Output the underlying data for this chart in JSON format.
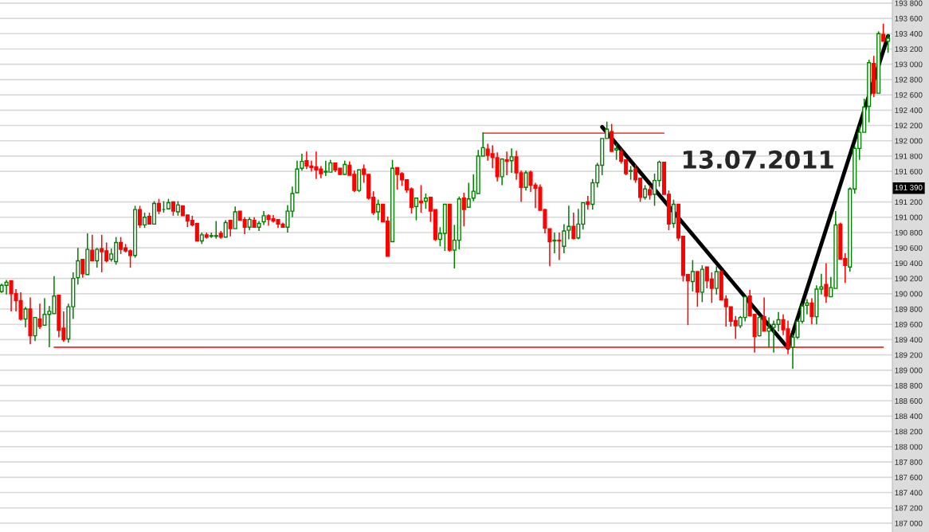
{
  "chart_data": {
    "type": "candlestick",
    "categories": [
      null,
      null,
      null,
      null,
      null,
      null,
      null,
      null,
      null,
      null,
      null,
      null,
      null,
      null,
      null,
      null,
      null,
      null,
      null,
      null,
      null,
      null,
      null,
      null,
      null,
      null,
      null,
      null,
      null,
      null,
      null,
      null,
      null,
      null,
      null,
      null,
      null,
      null,
      null,
      null,
      null,
      null,
      null,
      null,
      null,
      null,
      null,
      null,
      null,
      null,
      null,
      null,
      null,
      null,
      null,
      null,
      null,
      null,
      null,
      null,
      null,
      null,
      null,
      null,
      null,
      null,
      null,
      null,
      null,
      null,
      null,
      null,
      null,
      null,
      null,
      null,
      null,
      null,
      null,
      null,
      null,
      null,
      null,
      null,
      null,
      null,
      null,
      null,
      null,
      null,
      null,
      null,
      null,
      null,
      null,
      null,
      null,
      null,
      null,
      null,
      null,
      null,
      null,
      null,
      null,
      null,
      null,
      null,
      null,
      null,
      null,
      null,
      null,
      null,
      null,
      null,
      null,
      null,
      null,
      null,
      null,
      null,
      null,
      null,
      null,
      null,
      null,
      null,
      null,
      null,
      null,
      null,
      null,
      null,
      null,
      null,
      null,
      null,
      null,
      null,
      null,
      null,
      null,
      null,
      null,
      null,
      null,
      null,
      null,
      null,
      null,
      null,
      null,
      null,
      null,
      null,
      null,
      null,
      null,
      null,
      null,
      null,
      null,
      null,
      null,
      null,
      null,
      null,
      null,
      null,
      null,
      null,
      null,
      null,
      null,
      null,
      null,
      null,
      null,
      null,
      null,
      null,
      null,
      null,
      null,
      null,
      null
    ],
    "ohlc": [
      [
        190030,
        190130,
        190010,
        190110
      ],
      [
        190110,
        190180,
        189990,
        190150
      ],
      [
        190170,
        190170,
        189770,
        190000
      ],
      [
        190000,
        190060,
        189770,
        189910
      ],
      [
        189910,
        190020,
        189650,
        189670
      ],
      [
        189670,
        189830,
        189560,
        189800
      ],
      [
        189800,
        189950,
        189340,
        189450
      ],
      [
        189450,
        189690,
        189380,
        189690
      ],
      [
        189670,
        189870,
        189540,
        189570
      ],
      [
        189590,
        189940,
        189590,
        189730
      ],
      [
        189730,
        189840,
        189300,
        189770
      ],
      [
        189740,
        190230,
        189740,
        189970
      ],
      [
        189980,
        189980,
        189430,
        189520
      ],
      [
        189550,
        189770,
        189370,
        189400
      ],
      [
        189410,
        189870,
        189360,
        189830
      ],
      [
        189830,
        190280,
        189670,
        190200
      ],
      [
        190210,
        190600,
        190120,
        190430
      ],
      [
        190450,
        190450,
        190210,
        190260
      ],
      [
        190250,
        190790,
        190250,
        190580
      ],
      [
        190570,
        190770,
        190430,
        190430
      ],
      [
        190430,
        190600,
        190340,
        190580
      ],
      [
        190590,
        190770,
        190280,
        190550
      ],
      [
        190560,
        190670,
        190410,
        190430
      ],
      [
        190450,
        190590,
        190420,
        190520
      ],
      [
        190420,
        190740,
        190380,
        190670
      ],
      [
        190670,
        190740,
        190520,
        190580
      ],
      [
        190600,
        190650,
        190540,
        190560
      ],
      [
        190560,
        190580,
        190340,
        190500
      ],
      [
        190500,
        191150,
        190470,
        191100
      ],
      [
        191100,
        191150,
        190860,
        190900
      ],
      [
        190900,
        191060,
        190860,
        191000
      ],
      [
        191010,
        191060,
        190910,
        190910
      ],
      [
        190910,
        191210,
        190910,
        191180
      ],
      [
        191180,
        191240,
        191040,
        191080
      ],
      [
        191100,
        191210,
        191060,
        191100
      ],
      [
        191110,
        191240,
        191110,
        191190
      ],
      [
        191200,
        191200,
        191020,
        191080
      ],
      [
        191070,
        191210,
        191020,
        191160
      ],
      [
        191150,
        191150,
        191020,
        191020
      ],
      [
        191030,
        191030,
        190870,
        190950
      ],
      [
        190960,
        191020,
        190880,
        190900
      ],
      [
        190920,
        190920,
        190690,
        190690
      ],
      [
        190690,
        190800,
        190650,
        190770
      ],
      [
        190770,
        190800,
        190720,
        190740
      ],
      [
        190750,
        190800,
        190730,
        190760
      ],
      [
        190750,
        190950,
        190720,
        190760
      ],
      [
        190790,
        190820,
        190720,
        190740
      ],
      [
        190740,
        190960,
        190740,
        190930
      ],
      [
        190960,
        190960,
        190750,
        190850
      ],
      [
        190850,
        191140,
        190850,
        191070
      ],
      [
        191080,
        191080,
        190960,
        190960
      ],
      [
        190970,
        191000,
        190780,
        190870
      ],
      [
        190870,
        191000,
        190830,
        190970
      ],
      [
        190960,
        191000,
        190870,
        190870
      ],
      [
        190870,
        190950,
        190820,
        190920
      ],
      [
        190940,
        191080,
        190900,
        191020
      ],
      [
        191020,
        191040,
        190890,
        190970
      ],
      [
        190980,
        191030,
        190930,
        190950
      ],
      [
        190970,
        190970,
        190860,
        190910
      ],
      [
        190910,
        190930,
        190870,
        190870
      ],
      [
        190870,
        191160,
        190800,
        191080
      ],
      [
        191080,
        191400,
        191000,
        191310
      ],
      [
        191320,
        191740,
        191320,
        191630
      ],
      [
        191640,
        191830,
        191610,
        191730
      ],
      [
        191740,
        191860,
        191630,
        191670
      ],
      [
        191670,
        191740,
        191600,
        191650
      ],
      [
        191660,
        191860,
        191500,
        191620
      ],
      [
        191630,
        191670,
        191510,
        191570
      ],
      [
        191590,
        191740,
        191540,
        191600
      ],
      [
        191590,
        191750,
        191590,
        191710
      ],
      [
        191710,
        191710,
        191590,
        191620
      ],
      [
        191640,
        191640,
        191550,
        191560
      ],
      [
        191560,
        191740,
        191560,
        191690
      ],
      [
        191680,
        191730,
        191550,
        191550
      ],
      [
        191560,
        191610,
        191330,
        191350
      ],
      [
        191350,
        191620,
        191330,
        191620
      ],
      [
        191630,
        191690,
        191450,
        191560
      ],
      [
        191560,
        191560,
        191230,
        191250
      ],
      [
        191260,
        191340,
        191030,
        191060
      ],
      [
        191070,
        191230,
        190960,
        191170
      ],
      [
        191170,
        191170,
        190940,
        190940
      ],
      [
        190950,
        191010,
        190490,
        190490
      ],
      [
        190680,
        191750,
        190680,
        191640
      ],
      [
        191650,
        191650,
        191360,
        191560
      ],
      [
        191570,
        191590,
        191410,
        191490
      ],
      [
        191490,
        191490,
        191320,
        191360
      ],
      [
        191370,
        191390,
        191050,
        191130
      ],
      [
        191140,
        191250,
        190960,
        191250
      ],
      [
        191210,
        191420,
        191060,
        191190
      ],
      [
        191210,
        191310,
        191110,
        191250
      ],
      [
        191260,
        191260,
        190940,
        191080
      ],
      [
        191100,
        191100,
        190690,
        190710
      ],
      [
        190710,
        190870,
        190620,
        190790
      ],
      [
        190790,
        191170,
        190560,
        191170
      ],
      [
        191170,
        191170,
        190550,
        190570
      ],
      [
        190570,
        190900,
        190330,
        190700
      ],
      [
        190700,
        191270,
        190580,
        191240
      ],
      [
        191250,
        191320,
        190880,
        191100
      ],
      [
        191130,
        191450,
        191130,
        191240
      ],
      [
        191250,
        191560,
        191210,
        191340
      ],
      [
        191310,
        191880,
        191310,
        191800
      ],
      [
        191800,
        192110,
        191800,
        191910
      ],
      [
        191890,
        191960,
        191740,
        191810
      ],
      [
        191830,
        191940,
        191640,
        191780
      ],
      [
        191780,
        191850,
        191470,
        191530
      ],
      [
        191530,
        191770,
        191420,
        191760
      ],
      [
        191750,
        191860,
        191550,
        191730
      ],
      [
        191740,
        191900,
        191580,
        191790
      ],
      [
        191790,
        191870,
        191490,
        191580
      ],
      [
        191580,
        191610,
        191200,
        191390
      ],
      [
        191390,
        191610,
        191350,
        191580
      ],
      [
        191590,
        191610,
        191330,
        191420
      ],
      [
        191420,
        191450,
        191120,
        191380
      ],
      [
        191390,
        191430,
        191090,
        191090
      ],
      [
        191100,
        191110,
        190790,
        190860
      ],
      [
        190850,
        190850,
        190360,
        190680
      ],
      [
        190690,
        190800,
        190530,
        190700
      ],
      [
        190700,
        190800,
        190440,
        190690
      ],
      [
        190620,
        190910,
        190530,
        190820
      ],
      [
        190830,
        191150,
        190710,
        190880
      ],
      [
        190880,
        191060,
        190710,
        190720
      ],
      [
        190730,
        191110,
        190710,
        190910
      ],
      [
        190910,
        191190,
        190840,
        191190
      ],
      [
        191200,
        191280,
        191100,
        191170
      ],
      [
        191170,
        191500,
        191100,
        191450
      ],
      [
        191450,
        191710,
        191390,
        191680
      ],
      [
        191680,
        192030,
        191550,
        192030
      ],
      [
        192030,
        192250,
        192030,
        192150
      ],
      [
        192120,
        192220,
        191860,
        191860
      ],
      [
        191880,
        191960,
        191750,
        191900
      ],
      [
        191860,
        191900,
        191700,
        191730
      ],
      [
        191750,
        191750,
        191550,
        191570
      ],
      [
        191600,
        191670,
        191490,
        191610
      ],
      [
        191630,
        191690,
        191450,
        191490
      ],
      [
        191510,
        191510,
        191200,
        191260
      ],
      [
        191260,
        191420,
        191230,
        191370
      ],
      [
        191360,
        191420,
        191230,
        191290
      ],
      [
        191300,
        191570,
        191150,
        191480
      ],
      [
        191480,
        191740,
        191400,
        191720
      ],
      [
        191720,
        191720,
        191300,
        191300
      ],
      [
        191300,
        191350,
        190830,
        190910
      ],
      [
        190920,
        191230,
        190860,
        191170
      ],
      [
        191170,
        191170,
        190690,
        190730
      ],
      [
        190750,
        190750,
        190160,
        190240
      ],
      [
        190250,
        190250,
        189590,
        190170
      ],
      [
        190160,
        190440,
        190030,
        190290
      ],
      [
        190290,
        190290,
        189830,
        190020
      ],
      [
        190020,
        190370,
        189890,
        190320
      ],
      [
        190350,
        190350,
        190070,
        190170
      ],
      [
        190190,
        190280,
        189880,
        190070
      ],
      [
        190070,
        190360,
        189990,
        190290
      ],
      [
        190290,
        190290,
        189920,
        189920
      ],
      [
        189930,
        189980,
        189570,
        189830
      ],
      [
        189830,
        189830,
        189570,
        189640
      ],
      [
        189650,
        189710,
        189410,
        189580
      ],
      [
        189580,
        189710,
        189550,
        189690
      ],
      [
        189690,
        189960,
        189640,
        189960
      ],
      [
        189970,
        190050,
        189710,
        189710
      ],
      [
        189730,
        189730,
        189230,
        189440
      ],
      [
        189450,
        189710,
        189440,
        189690
      ],
      [
        189700,
        189950,
        189510,
        189510
      ],
      [
        189510,
        189690,
        189300,
        189550
      ],
      [
        189560,
        189650,
        189230,
        189600
      ],
      [
        189600,
        189760,
        189510,
        189660
      ],
      [
        189660,
        189730,
        189460,
        189530
      ],
      [
        189540,
        189650,
        189210,
        189290
      ],
      [
        189300,
        189470,
        189020,
        189430
      ],
      [
        189430,
        189660,
        189410,
        189640
      ],
      [
        189640,
        189870,
        189610,
        189840
      ],
      [
        189850,
        189930,
        189730,
        189880
      ],
      [
        189880,
        189940,
        189600,
        189700
      ],
      [
        189700,
        190110,
        189600,
        190060
      ],
      [
        190060,
        190260,
        189990,
        190090
      ],
      [
        190120,
        190400,
        189880,
        189970
      ],
      [
        189960,
        190220,
        189960,
        190080
      ],
      [
        190070,
        191080,
        190070,
        190900
      ],
      [
        190910,
        190930,
        190450,
        190450
      ],
      [
        190460,
        190530,
        190140,
        190370
      ],
      [
        190350,
        191390,
        190290,
        191370
      ],
      [
        191370,
        191930,
        191310,
        191900
      ],
      [
        191900,
        192190,
        191750,
        192110
      ],
      [
        192110,
        192550,
        192110,
        192440
      ],
      [
        192450,
        193060,
        192240,
        193020
      ],
      [
        193010,
        193110,
        192570,
        192620
      ],
      [
        192620,
        193430,
        192620,
        193400
      ],
      [
        193390,
        193530,
        193300,
        193300
      ],
      [
        193300,
        193390,
        193150,
        193340
      ]
    ],
    "colors": [
      "#008000",
      "#008000",
      "#ff0000",
      "#ff0000",
      "#ff0000",
      "#008000",
      "#ff0000",
      "#008000",
      "#ff0000",
      "#008000",
      "#008000",
      "#008000",
      "#ff0000",
      "#ff0000",
      "#008000",
      "#008000",
      "#008000",
      "#ff0000",
      "#008000",
      "#ff0000",
      "#008000",
      "#ff0000",
      "#ff0000",
      "#008000",
      "#008000",
      "#ff0000",
      "#ff0000",
      "#ff0000",
      "#008000",
      "#ff0000",
      "#008000",
      "#ff0000",
      "#008000",
      "#ff0000",
      "#008000",
      "#008000",
      "#ff0000",
      "#008000",
      "#ff0000",
      "#ff0000",
      "#ff0000",
      "#ff0000",
      "#008000",
      "#ff0000",
      "#008000",
      "#008000",
      "#ff0000",
      "#008000",
      "#ff0000",
      "#008000",
      "#ff0000",
      "#ff0000",
      "#008000",
      "#ff0000",
      "#008000",
      "#008000",
      "#ff0000",
      "#ff0000",
      "#ff0000",
      "#ff0000",
      "#008000",
      "#008000",
      "#008000",
      "#008000",
      "#ff0000",
      "#ff0000",
      "#ff0000",
      "#ff0000",
      "#008000",
      "#008000",
      "#ff0000",
      "#ff0000",
      "#008000",
      "#ff0000",
      "#ff0000",
      "#008000",
      "#ff0000",
      "#ff0000",
      "#ff0000",
      "#008000",
      "#ff0000",
      "#ff0000",
      "#008000",
      "#ff0000",
      "#ff0000",
      "#ff0000",
      "#ff0000",
      "#008000",
      "#ff0000",
      "#008000",
      "#ff0000",
      "#ff0000",
      "#008000",
      "#008000",
      "#ff0000",
      "#008000",
      "#008000",
      "#ff0000",
      "#008000",
      "#008000",
      "#008000",
      "#008000",
      "#ff0000",
      "#ff0000",
      "#ff0000",
      "#008000",
      "#ff0000",
      "#008000",
      "#ff0000",
      "#ff0000",
      "#008000",
      "#ff0000",
      "#ff0000",
      "#ff0000",
      "#ff0000",
      "#ff0000",
      "#008000",
      "#ff0000",
      "#008000",
      "#008000",
      "#ff0000",
      "#008000",
      "#008000",
      "#ff0000",
      "#008000",
      "#008000",
      "#008000",
      "#008000",
      "#ff0000",
      "#008000",
      "#ff0000",
      "#ff0000",
      "#008000",
      "#ff0000",
      "#ff0000",
      "#008000",
      "#ff0000",
      "#008000",
      "#008000",
      "#ff0000",
      "#ff0000",
      "#008000",
      "#ff0000",
      "#ff0000",
      "#ff0000",
      "#008000",
      "#ff0000",
      "#008000",
      "#ff0000",
      "#ff0000",
      "#008000",
      "#ff0000",
      "#ff0000",
      "#ff0000",
      "#ff0000",
      "#008000",
      "#008000",
      "#ff0000",
      "#ff0000",
      "#008000",
      "#ff0000",
      "#008000",
      "#008000",
      "#008000",
      "#ff0000",
      "#ff0000",
      "#008000",
      "#008000",
      "#008000",
      "#008000",
      "#ff0000",
      "#008000",
      "#008000",
      "#ff0000",
      "#008000",
      "#008000",
      "#ff0000",
      "#ff0000",
      "#008000",
      "#008000",
      "#008000",
      "#008000",
      "#008000",
      "#ff0000",
      "#008000",
      "#ff0000",
      "#008000"
    ],
    "series": [
      {
        "type": "line",
        "color": "#000000",
        "values": [
          null,
          null,
          null,
          null,
          null,
          null,
          null,
          null,
          null,
          null,
          null,
          null,
          null,
          null,
          null,
          null,
          null,
          null,
          null,
          null,
          null,
          null,
          null,
          null,
          null,
          null,
          null,
          null,
          null,
          null,
          null,
          null,
          null,
          null,
          null,
          null,
          null,
          null,
          null,
          null,
          null,
          null,
          null,
          null,
          null,
          null,
          null,
          null,
          null,
          null,
          null,
          null,
          null,
          null,
          null,
          null,
          null,
          null,
          null,
          null,
          null,
          null,
          null,
          null,
          null,
          null,
          null,
          null,
          null,
          null,
          null,
          null,
          null,
          null,
          null,
          null,
          null,
          null,
          null,
          null,
          null,
          null,
          null,
          null,
          null,
          null,
          null,
          null,
          null,
          null,
          null,
          null,
          null,
          null,
          null,
          null,
          null,
          null,
          null,
          null,
          null,
          null,
          null,
          null,
          null,
          null,
          null,
          null,
          null,
          null,
          null,
          null,
          null,
          null,
          null,
          null,
          null,
          null,
          null,
          null,
          null,
          null,
          null,
          null,
          null,
          null,
          192180,
          null,
          null,
          null,
          null,
          null,
          null,
          null,
          null,
          null,
          null,
          null,
          null,
          null,
          null,
          null,
          null,
          null,
          null,
          null,
          null,
          null,
          null,
          null,
          null,
          null,
          null,
          null,
          null,
          null,
          null,
          null,
          null,
          null,
          null,
          null,
          null,
          null,
          null,
          189290,
          null,
          null,
          null,
          null,
          null,
          null,
          null,
          null,
          null,
          null,
          null,
          null,
          null,
          null,
          null,
          null,
          null,
          null,
          null,
          null,
          193370
        ]
      },
      {
        "type": "line",
        "color": "#ff0000",
        "values": [
          null,
          null,
          null,
          null,
          null,
          null,
          null,
          null,
          null,
          null,
          null,
          189300,
          null,
          null,
          null,
          null,
          null,
          null,
          null,
          null,
          null,
          null,
          null,
          null,
          null,
          null,
          null,
          null,
          null,
          null,
          null,
          null,
          null,
          null,
          null,
          null,
          null,
          null,
          null,
          null,
          null,
          null,
          null,
          null,
          null,
          null,
          null,
          null,
          null,
          null,
          null,
          null,
          null,
          null,
          null,
          null,
          null,
          null,
          null,
          null,
          null,
          null,
          null,
          null,
          null,
          null,
          null,
          null,
          null,
          null,
          null,
          null,
          null,
          null,
          null,
          null,
          null,
          null,
          null,
          null,
          null,
          null,
          null,
          null,
          null,
          null,
          null,
          null,
          null,
          null,
          null,
          null,
          null,
          null,
          null,
          null,
          null,
          null,
          null,
          null,
          null,
          null,
          null,
          null,
          null,
          null,
          null,
          null,
          null,
          null,
          null,
          null,
          null,
          null,
          null,
          null,
          null,
          null,
          null,
          null,
          null,
          null,
          null,
          null,
          null,
          null,
          null,
          null,
          null,
          null,
          null,
          null,
          null,
          null,
          null,
          null,
          null,
          null,
          null,
          null,
          null,
          null,
          null,
          null,
          null,
          null,
          null,
          null,
          null,
          null,
          null,
          null,
          null,
          null,
          null,
          null,
          null,
          null,
          null,
          null,
          null,
          null,
          null,
          null,
          null,
          null,
          null,
          null,
          null,
          null,
          null,
          null,
          null,
          null,
          null,
          null,
          null,
          null,
          null,
          null,
          null,
          null,
          null,
          null,
          null,
          189300,
          null
        ]
      },
      {
        "type": "line",
        "color": "#ff0000",
        "values": [
          null,
          null,
          null,
          null,
          null,
          null,
          null,
          null,
          null,
          null,
          null,
          null,
          null,
          null,
          null,
          null,
          null,
          null,
          null,
          null,
          null,
          null,
          null,
          null,
          null,
          null,
          null,
          null,
          null,
          null,
          null,
          null,
          null,
          null,
          null,
          null,
          null,
          null,
          null,
          null,
          null,
          null,
          null,
          null,
          null,
          null,
          null,
          null,
          null,
          null,
          null,
          null,
          null,
          null,
          null,
          null,
          null,
          null,
          null,
          null,
          null,
          null,
          null,
          null,
          null,
          null,
          null,
          null,
          null,
          null,
          null,
          null,
          null,
          null,
          null,
          null,
          null,
          null,
          null,
          null,
          null,
          null,
          null,
          null,
          null,
          null,
          null,
          null,
          null,
          null,
          null,
          null,
          null,
          null,
          null,
          null,
          null,
          null,
          null,
          null,
          null,
          192100,
          null,
          null,
          null,
          null,
          null,
          null,
          null,
          null,
          null,
          null,
          null,
          null,
          null,
          null,
          null,
          null,
          null,
          null,
          null,
          null,
          null,
          null,
          null,
          null,
          null,
          null,
          null,
          null,
          null,
          null,
          null,
          null,
          null,
          null,
          null,
          null,
          null,
          192100,
          null,
          null,
          null,
          null,
          null,
          null,
          null,
          null,
          null,
          null,
          null,
          null,
          null,
          null,
          null,
          null,
          null,
          null,
          null,
          null,
          null,
          null,
          null,
          null,
          null,
          null,
          null,
          null,
          null,
          null,
          null,
          null,
          null,
          null,
          null,
          null,
          null,
          null,
          null,
          null,
          null,
          null,
          null,
          null,
          null,
          null,
          null
        ]
      }
    ],
    "annotations": [
      "13.07.2011"
    ],
    "ylim": [
      186885,
      193840
    ],
    "yticks": [
      {
        "value": 187000,
        "label": "187 000"
      },
      {
        "value": 187200,
        "label": "187 200"
      },
      {
        "value": 187400,
        "label": "187 400"
      },
      {
        "value": 187600,
        "label": "187 600"
      },
      {
        "value": 187800,
        "label": "187 800"
      },
      {
        "value": 188000,
        "label": "188 000"
      },
      {
        "value": 188200,
        "label": "188 200"
      },
      {
        "value": 188400,
        "label": "188 400"
      },
      {
        "value": 188600,
        "label": "188 600"
      },
      {
        "value": 188800,
        "label": "188 800"
      },
      {
        "value": 189000,
        "label": "189 000"
      },
      {
        "value": 189200,
        "label": "189 200"
      },
      {
        "value": 189400,
        "label": "189 400"
      },
      {
        "value": 189600,
        "label": "189 600"
      },
      {
        "value": 189800,
        "label": "189 800"
      },
      {
        "value": 190000,
        "label": "190 000"
      },
      {
        "value": 190200,
        "label": "190 200"
      },
      {
        "value": 190400,
        "label": "190 400"
      },
      {
        "value": 190600,
        "label": "190 600"
      },
      {
        "value": 190800,
        "label": "190 800"
      },
      {
        "value": 191000,
        "label": "191 000"
      },
      {
        "value": 191200,
        "label": "191 200"
      },
      {
        "value": 191600,
        "label": "191 600"
      },
      {
        "value": 191800,
        "label": "191 800"
      },
      {
        "value": 192000,
        "label": "192 000"
      },
      {
        "value": 192200,
        "label": "192 200"
      },
      {
        "value": 192400,
        "label": "192 400"
      },
      {
        "value": 192600,
        "label": "192 600"
      },
      {
        "value": 192800,
        "label": "192 800"
      },
      {
        "value": 193000,
        "label": "193 000"
      },
      {
        "value": 193200,
        "label": "193 200"
      },
      {
        "value": 193400,
        "label": "193 400"
      },
      {
        "value": 193600,
        "label": "193 600"
      },
      {
        "value": 193800,
        "label": "193 800"
      },
      {
        "value": 191390,
        "label": "191 390"
      }
    ],
    "tick_labels": "y",
    "grid": "y"
  }
}
